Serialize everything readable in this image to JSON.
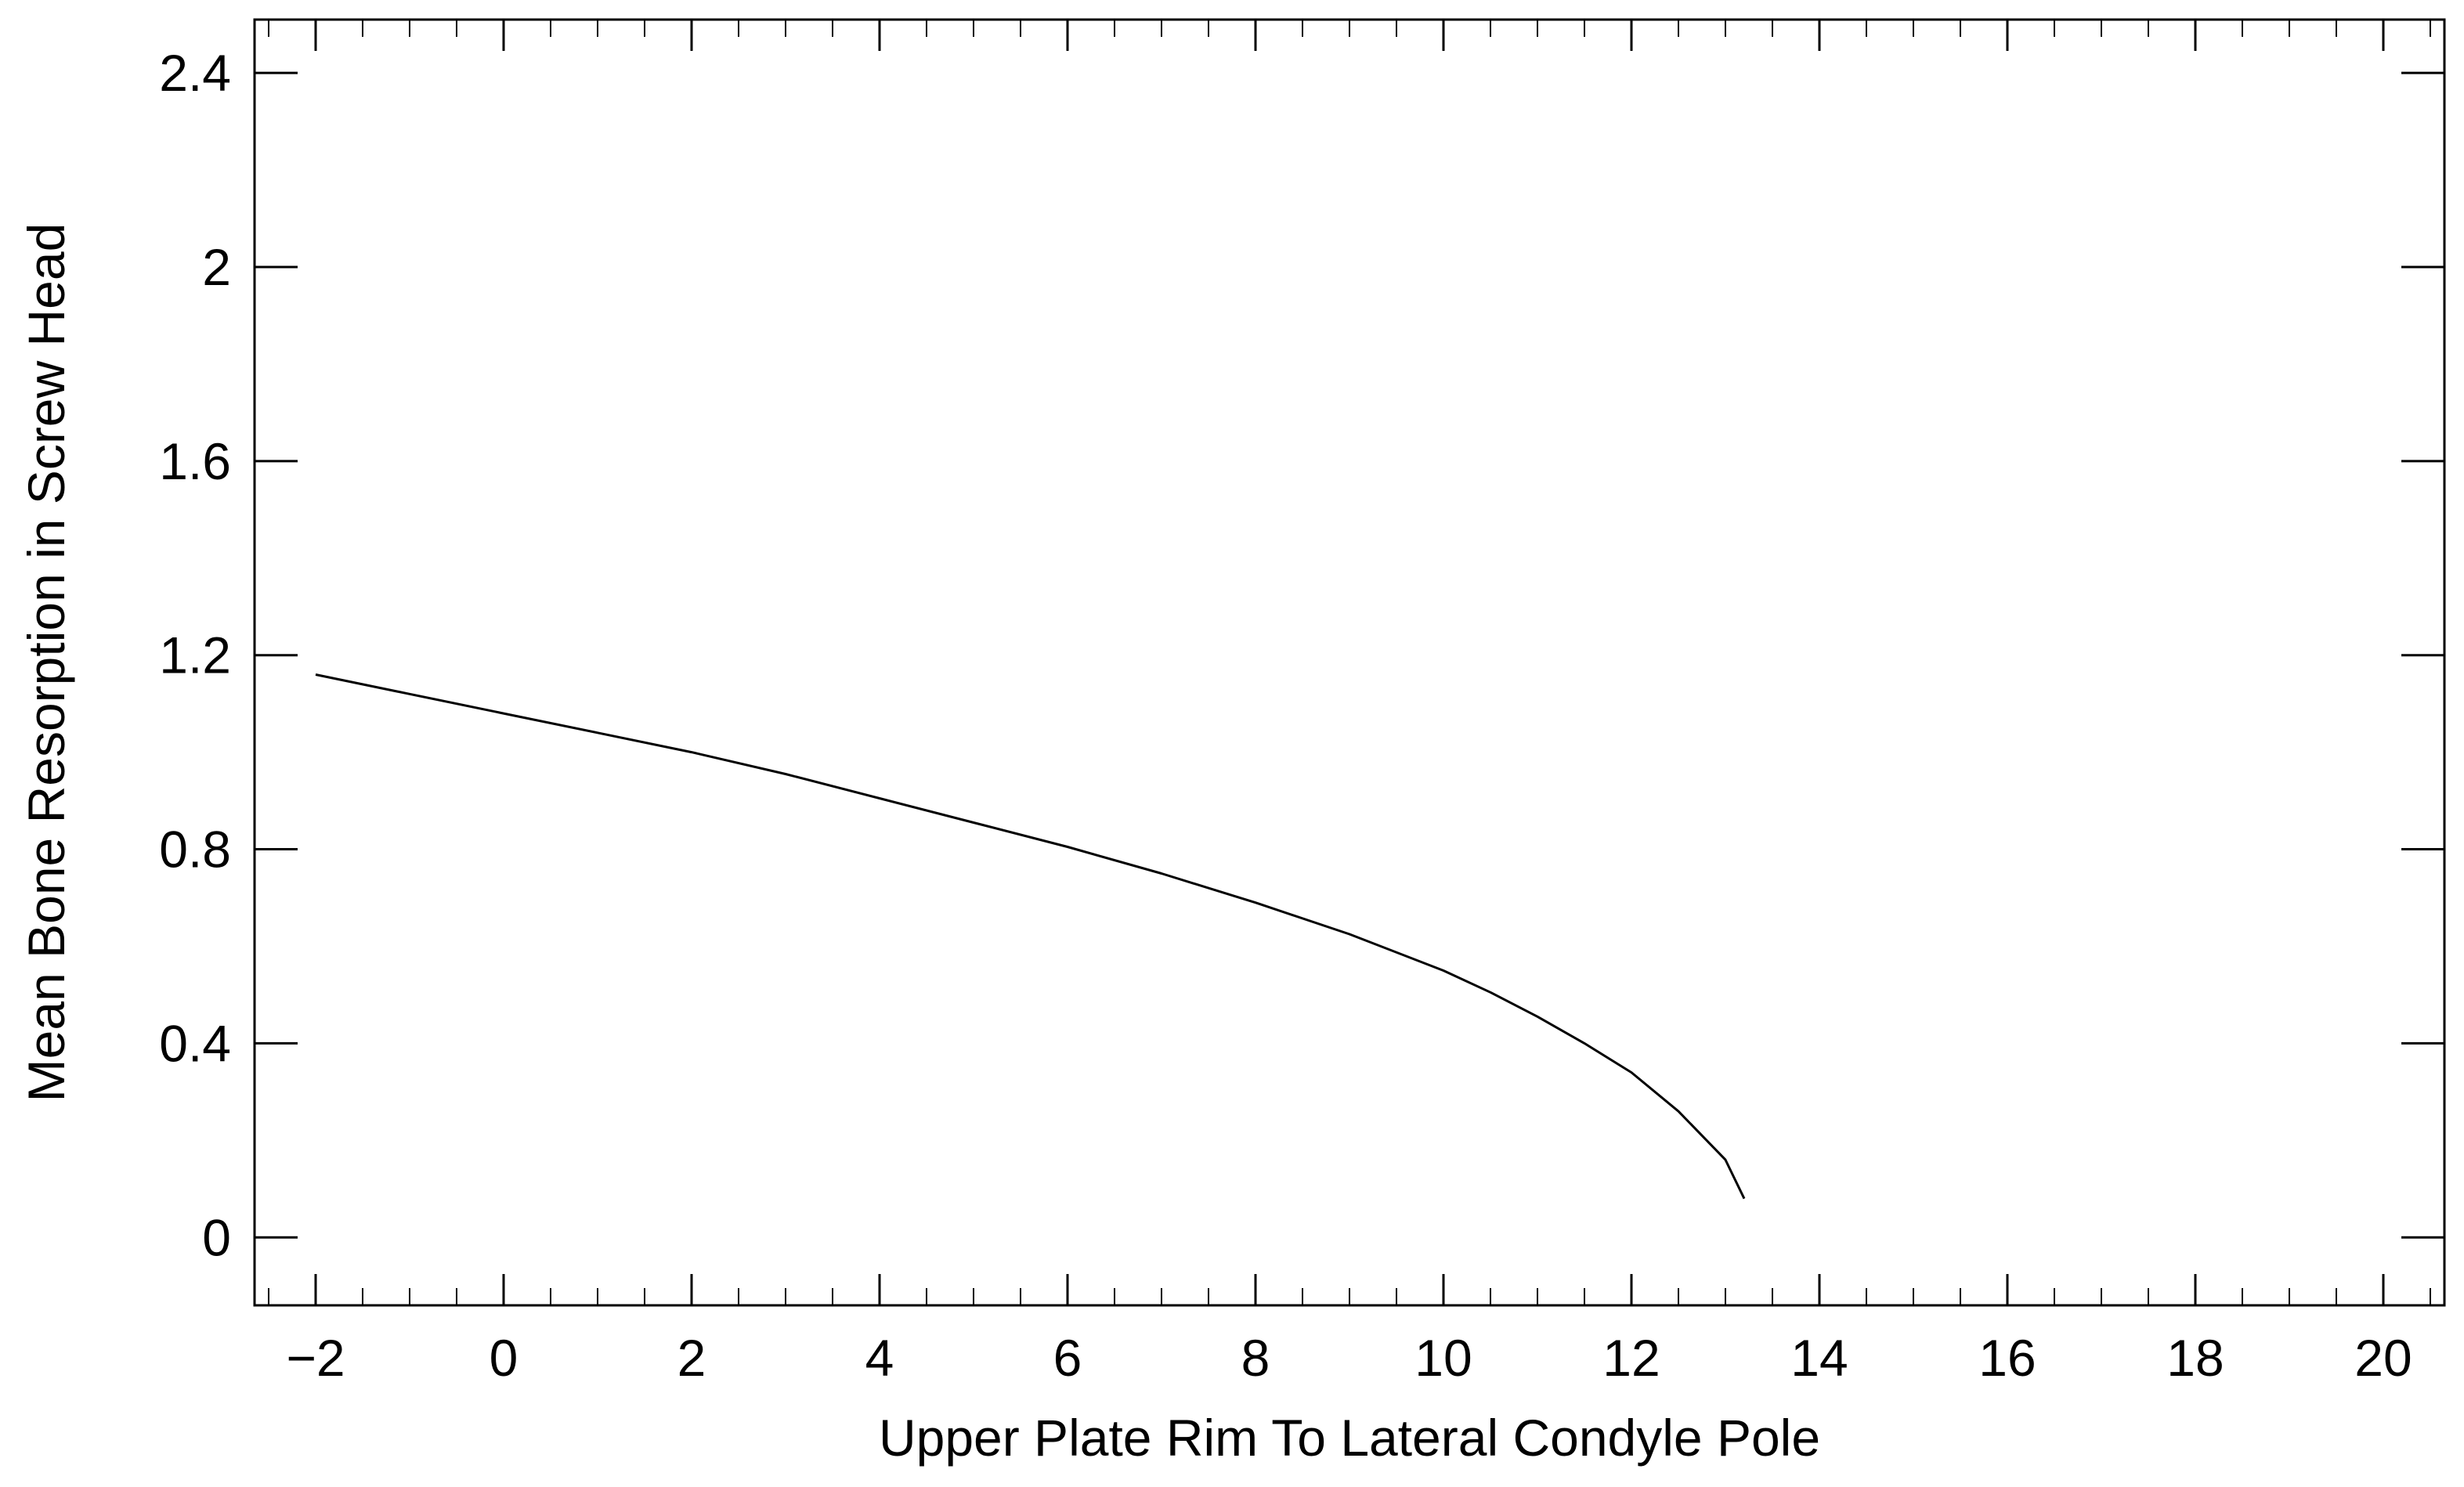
{
  "chart_data": {
    "type": "line",
    "title": "",
    "xlabel": "Upper Plate Rim To Lateral Condyle Pole",
    "ylabel": "Mean Bone Resorption in Screw Head",
    "xlim": [
      -2.65,
      20.65
    ],
    "ylim": [
      -0.14,
      2.51
    ],
    "x_ticks": [
      -2,
      0,
      2,
      4,
      6,
      8,
      10,
      12,
      14,
      16,
      18,
      20
    ],
    "x_tick_labels": [
      "−2",
      "0",
      "2",
      "4",
      "6",
      "8",
      "10",
      "12",
      "14",
      "16",
      "18",
      "20"
    ],
    "y_ticks": [
      0,
      0.4,
      0.8,
      1.2,
      1.6,
      2,
      2.4
    ],
    "y_tick_labels": [
      "0",
      "0.4",
      "0.8",
      "1.2",
      "1.6",
      "2",
      "2.4"
    ],
    "grid": false,
    "series": [
      {
        "line_color": "#000000",
        "x": [
          -2,
          -1,
          0,
          1,
          2,
          3,
          4,
          5,
          6,
          7,
          8,
          9,
          10,
          10.5,
          11,
          11.5,
          12,
          12.5,
          13,
          13.2
        ],
        "y": [
          1.16,
          1.12,
          1.08,
          1.04,
          1.0,
          0.955,
          0.905,
          0.855,
          0.805,
          0.75,
          0.69,
          0.625,
          0.55,
          0.505,
          0.455,
          0.4,
          0.34,
          0.26,
          0.16,
          0.08
        ]
      }
    ]
  }
}
